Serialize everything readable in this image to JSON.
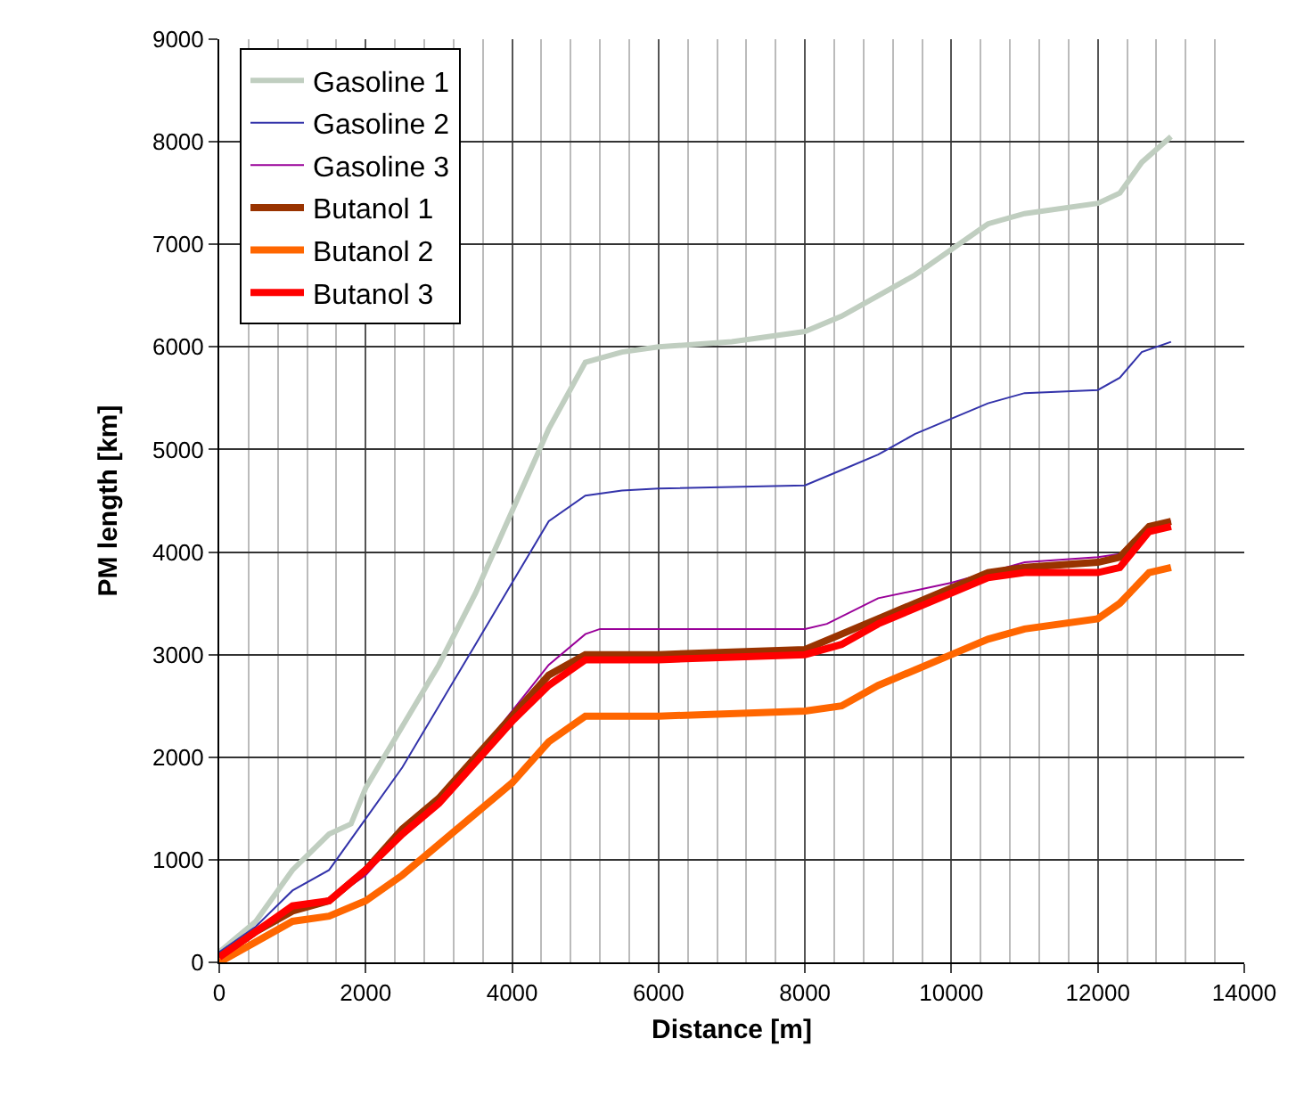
{
  "chart_data": {
    "type": "line",
    "xlabel": "Distance [m]",
    "ylabel": "PM length [km]",
    "xlim": [
      0,
      14000
    ],
    "xticks": [
      0,
      2000,
      4000,
      6000,
      8000,
      10000,
      12000,
      14000
    ],
    "ylim": [
      0,
      9000
    ],
    "yticks": [
      0,
      1000,
      2000,
      3000,
      4000,
      5000,
      6000,
      7000,
      8000,
      9000
    ],
    "grid": true,
    "legend": "top left",
    "marker": "none",
    "series": [
      {
        "name": "Gasoline 1",
        "color": "#c0cec0",
        "x": [
          0,
          500,
          1000,
          1500,
          1800,
          2000,
          2500,
          3000,
          3500,
          4000,
          4500,
          5000,
          5500,
          6000,
          7000,
          8000,
          8500,
          9000,
          9500,
          10000,
          10500,
          11000,
          12000,
          12300,
          12600,
          13000
        ],
        "values": [
          100,
          400,
          900,
          1250,
          1350,
          1700,
          2300,
          2900,
          3600,
          4400,
          5200,
          5850,
          5950,
          6000,
          6050,
          6150,
          6300,
          6500,
          6700,
          6950,
          7200,
          7300,
          7400,
          7500,
          7800,
          8050
        ]
      },
      {
        "name": "Gasoline 2",
        "color": "#3333aa",
        "x": [
          0,
          500,
          1000,
          1500,
          2000,
          2500,
          3000,
          3500,
          4000,
          4500,
          5000,
          5500,
          6000,
          8000,
          8500,
          9000,
          9500,
          10000,
          10500,
          11000,
          12000,
          12300,
          12600,
          13000
        ],
        "values": [
          100,
          350,
          700,
          900,
          1400,
          1900,
          2500,
          3100,
          3700,
          4300,
          4550,
          4600,
          4620,
          4650,
          4800,
          4950,
          5150,
          5300,
          5450,
          5550,
          5580,
          5700,
          5950,
          6050
        ]
      },
      {
        "name": "Gasoline 3",
        "color": "#990099",
        "x": [
          1500,
          2000,
          2500,
          3000,
          3500,
          4000,
          4500,
          5000,
          5200,
          8000,
          8300,
          9000,
          10000,
          11000,
          12000,
          12300,
          12700,
          13000
        ],
        "values": [
          600,
          850,
          1250,
          1600,
          2000,
          2450,
          2900,
          3200,
          3250,
          3250,
          3300,
          3550,
          3700,
          3900,
          3950,
          3980,
          4250,
          4300
        ]
      },
      {
        "name": "Butanol 1",
        "color": "#993300",
        "x": [
          0,
          500,
          1000,
          1500,
          2000,
          2500,
          3000,
          3500,
          4000,
          4500,
          5000,
          6000,
          8000,
          8500,
          9000,
          9500,
          10000,
          10500,
          11000,
          12000,
          12300,
          12700,
          13000
        ],
        "values": [
          50,
          300,
          500,
          600,
          900,
          1300,
          1600,
          2000,
          2400,
          2800,
          3000,
          3000,
          3050,
          3200,
          3350,
          3500,
          3650,
          3800,
          3850,
          3900,
          3950,
          4250,
          4300
        ]
      },
      {
        "name": "Butanol 2",
        "color": "#ff6600",
        "x": [
          0,
          500,
          1000,
          1500,
          2000,
          2500,
          3000,
          3500,
          4000,
          4500,
          5000,
          6000,
          8000,
          8500,
          9000,
          9500,
          10000,
          10500,
          11000,
          12000,
          12300,
          12700,
          13000
        ],
        "values": [
          0,
          200,
          400,
          450,
          600,
          850,
          1150,
          1450,
          1750,
          2150,
          2400,
          2400,
          2450,
          2500,
          2700,
          2850,
          3000,
          3150,
          3250,
          3350,
          3500,
          3800,
          3850
        ]
      },
      {
        "name": "Butanol 3",
        "color": "#ff0000",
        "x": [
          0,
          500,
          1000,
          1500,
          2000,
          2500,
          3000,
          3500,
          4000,
          4500,
          5000,
          6000,
          8000,
          8500,
          9000,
          9500,
          10000,
          10500,
          11000,
          12000,
          12300,
          12700,
          13000
        ],
        "values": [
          50,
          300,
          550,
          600,
          900,
          1250,
          1550,
          1950,
          2350,
          2700,
          2950,
          2950,
          3000,
          3100,
          3300,
          3450,
          3600,
          3750,
          3800,
          3800,
          3850,
          4200,
          4250
        ]
      }
    ]
  }
}
